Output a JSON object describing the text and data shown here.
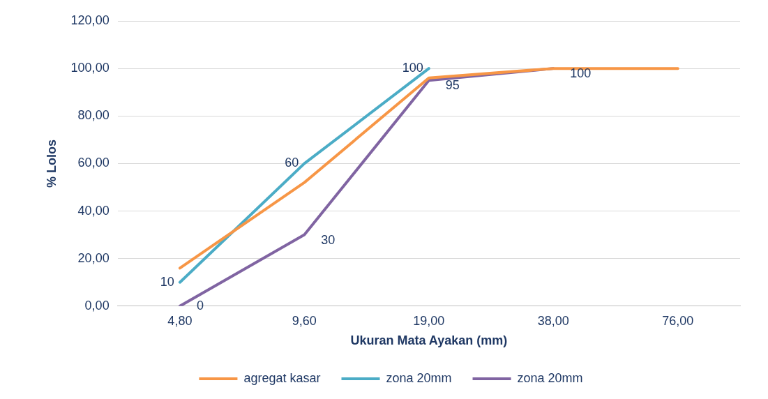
{
  "chart_data": {
    "type": "line",
    "xlabel": "Ukuran Mata Ayakan (mm)",
    "ylabel": "% Lolos",
    "categories": [
      "4,80",
      "9,60",
      "19,00",
      "38,00",
      "76,00"
    ],
    "series": [
      {
        "name": "agregat kasar",
        "color": "#f79646",
        "values": [
          16,
          52,
          96,
          100,
          100
        ]
      },
      {
        "name": "zona 20mm",
        "color": "#4bacc6",
        "values": [
          10,
          60,
          100,
          null,
          null
        ],
        "value_labels": [
          "10",
          "60",
          "100",
          null,
          null
        ]
      },
      {
        "name": "zona 20mm",
        "color": "#8064a2",
        "values": [
          0,
          30,
          95,
          100,
          null
        ],
        "value_labels": [
          "0",
          "30",
          "95",
          "100",
          null
        ]
      }
    ],
    "ylim": [
      0,
      120
    ],
    "yticks": [
      {
        "value": 0,
        "label": "0,00"
      },
      {
        "value": 20,
        "label": "20,00"
      },
      {
        "value": 40,
        "label": "40,00"
      },
      {
        "value": 60,
        "label": "60,00"
      },
      {
        "value": 80,
        "label": "80,00"
      },
      {
        "value": 100,
        "label": "100,00"
      },
      {
        "value": 120,
        "label": "120,00"
      }
    ],
    "grid": "y",
    "legend": "bottom",
    "marker": "none",
    "line_style": "solid"
  }
}
